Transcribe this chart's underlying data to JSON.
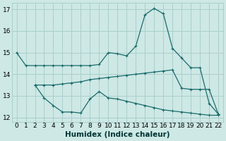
{
  "xlabel": "Humidex (Indice chaleur)",
  "xlim": [
    -0.5,
    22.5
  ],
  "ylim": [
    11.8,
    17.3
  ],
  "yticks": [
    12,
    13,
    14,
    15,
    16,
    17
  ],
  "xticks": [
    0,
    1,
    2,
    3,
    4,
    5,
    6,
    7,
    8,
    9,
    10,
    11,
    12,
    13,
    14,
    15,
    16,
    17,
    18,
    19,
    20,
    21,
    22
  ],
  "bg_color": "#cde8e5",
  "grid_color": "#aacfcc",
  "line_color": "#1a6b6b",
  "line1_x": [
    0,
    1,
    2,
    3,
    4,
    5,
    6,
    7,
    8,
    9,
    10,
    11,
    12,
    13,
    14,
    15,
    16,
    17,
    18,
    19,
    20,
    21,
    22
  ],
  "line1_y": [
    15.0,
    14.4,
    14.4,
    14.4,
    14.4,
    14.4,
    14.4,
    14.4,
    14.4,
    14.45,
    15.0,
    14.95,
    14.85,
    15.3,
    16.75,
    17.05,
    16.8,
    15.2,
    14.75,
    14.3,
    14.3,
    12.65,
    12.15
  ],
  "line2_x": [
    2,
    3,
    4,
    5,
    6,
    7,
    8,
    9,
    10,
    11,
    12,
    13,
    14,
    15,
    16,
    17,
    18,
    19,
    20,
    21,
    22
  ],
  "line2_y": [
    13.5,
    13.5,
    13.5,
    13.55,
    13.6,
    13.65,
    13.75,
    13.8,
    13.85,
    13.9,
    13.95,
    14.0,
    14.05,
    14.1,
    14.15,
    14.2,
    13.35,
    13.3,
    13.3,
    13.3,
    12.15
  ],
  "line3_x": [
    2,
    3,
    4,
    5,
    6,
    7,
    8,
    9,
    10,
    11,
    12,
    13,
    14,
    15,
    16,
    17,
    18,
    19,
    20,
    21,
    22
  ],
  "line3_y": [
    13.5,
    12.9,
    12.55,
    12.25,
    12.25,
    12.2,
    12.85,
    13.2,
    12.9,
    12.85,
    12.75,
    12.65,
    12.55,
    12.45,
    12.35,
    12.3,
    12.25,
    12.2,
    12.15,
    12.1,
    12.1
  ]
}
